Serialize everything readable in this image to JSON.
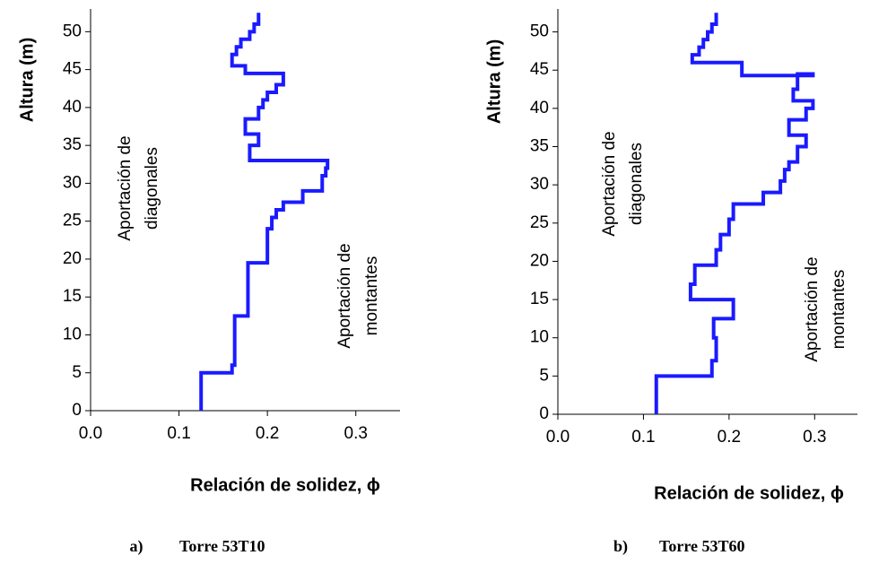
{
  "chart_data": [
    {
      "type": "line",
      "ylabel": "Altura (m)",
      "xlabel": "Relación de solidez, ϕ",
      "annotations": [
        [
          "Aportación de",
          "diagonales"
        ],
        [
          "Aportación de",
          "montantes"
        ]
      ],
      "caption_label": "a)",
      "caption": "Torre 53T10",
      "color": "#1a1aff",
      "xlim": [
        0,
        0.35
      ],
      "ylim": [
        0,
        53
      ],
      "xticks": [
        {
          "value": 0,
          "label": "0.0"
        },
        0.1,
        0.2,
        0.3
      ],
      "yticks": [
        0,
        5,
        10,
        15,
        20,
        25,
        30,
        35,
        40,
        45,
        50
      ],
      "x": [
        0.125,
        0.125,
        0.16,
        0.16,
        0.163,
        0.163,
        0.178,
        0.178,
        0.2,
        0.2,
        0.205,
        0.205,
        0.21,
        0.21,
        0.218,
        0.218,
        0.24,
        0.24,
        0.262,
        0.262,
        0.266,
        0.266,
        0.268,
        0.268,
        0.18,
        0.18,
        0.19,
        0.19,
        0.175,
        0.175,
        0.19,
        0.19,
        0.195,
        0.195,
        0.2,
        0.2,
        0.21,
        0.21,
        0.218,
        0.218,
        0.175,
        0.175,
        0.16,
        0.16,
        0.165,
        0.165,
        0.17,
        0.17,
        0.18,
        0.18,
        0.185,
        0.185,
        0.19,
        0.19
      ],
      "values": [
        0,
        5,
        5,
        6,
        6,
        12.5,
        12.5,
        19.5,
        19.5,
        24,
        24,
        25.5,
        25.5,
        26.5,
        26.5,
        27.5,
        27.5,
        29,
        29,
        31,
        31,
        32,
        32,
        33,
        33,
        35,
        35,
        36.5,
        36.5,
        38.5,
        38.5,
        40,
        40,
        41,
        41,
        42,
        42,
        43,
        43,
        44.5,
        44.5,
        45.5,
        45.5,
        47,
        47,
        48,
        48,
        49,
        49,
        50,
        50,
        51,
        51,
        52.5
      ]
    },
    {
      "type": "line",
      "ylabel": "Altura (m)",
      "xlabel": "Relación de solidez, ϕ",
      "annotations": [
        [
          "Aportación de",
          "diagonales"
        ],
        [
          "Aportación de",
          "montantes"
        ]
      ],
      "caption_label": "b)",
      "caption": "Torre 53T60",
      "color": "#1a1aff",
      "xlim": [
        0,
        0.35
      ],
      "ylim": [
        0,
        53
      ],
      "xticks": [
        {
          "value": 0,
          "label": "0.0"
        },
        0.1,
        0.2,
        0.3
      ],
      "yticks": [
        0,
        5,
        10,
        15,
        20,
        25,
        30,
        35,
        40,
        45,
        50
      ],
      "x": [
        0.115,
        0.115,
        0.18,
        0.18,
        0.185,
        0.185,
        0.182,
        0.182,
        0.205,
        0.205,
        0.155,
        0.155,
        0.16,
        0.16,
        0.185,
        0.185,
        0.19,
        0.19,
        0.2,
        0.2,
        0.205,
        0.205,
        0.24,
        0.24,
        0.26,
        0.26,
        0.265,
        0.265,
        0.27,
        0.27,
        0.28,
        0.28,
        0.29,
        0.29,
        0.27,
        0.27,
        0.29,
        0.29,
        0.298,
        0.298,
        0.275,
        0.275,
        0.28,
        0.28,
        0.298,
        0.298,
        0.215,
        0.215,
        0.157,
        0.157,
        0.165,
        0.165,
        0.17,
        0.17,
        0.175,
        0.175,
        0.18,
        0.18,
        0.185,
        0.185
      ],
      "values": [
        0,
        5,
        5,
        7,
        7,
        10,
        10,
        12.5,
        12.5,
        15,
        15,
        17,
        17,
        19.5,
        19.5,
        21.5,
        21.5,
        23.5,
        23.5,
        25.5,
        25.5,
        27.5,
        27.5,
        29,
        29,
        30.5,
        30.5,
        32,
        32,
        33,
        33,
        35,
        35,
        36.5,
        36.5,
        38.5,
        38.5,
        40,
        40,
        41,
        41,
        42.5,
        42.5,
        44.5,
        44.5,
        44.3,
        44.3,
        46,
        46,
        47,
        47,
        48,
        48,
        49,
        49,
        50,
        50,
        51,
        51,
        52.5
      ]
    }
  ]
}
